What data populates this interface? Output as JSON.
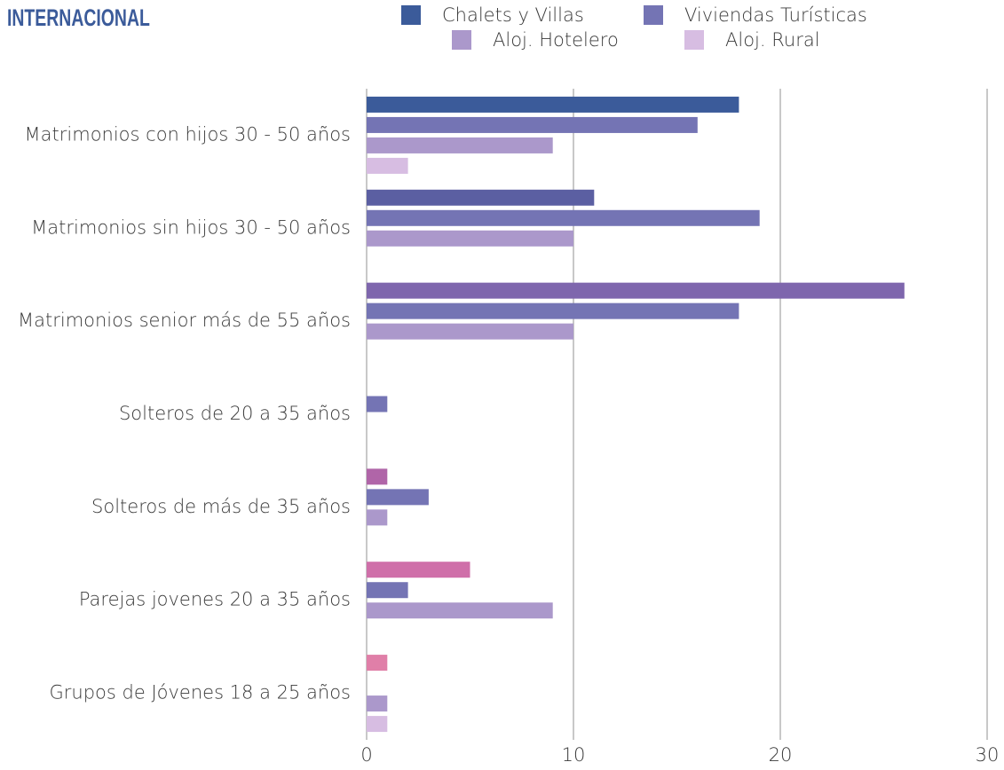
{
  "chart_data": {
    "type": "bar",
    "orientation": "horizontal",
    "title": "INTERNACIONAL",
    "categories": [
      "Matrimonios con hijos 30 - 50 años",
      "Matrimonios sin hijos 30 - 50 años",
      "Matrimonios senior más de 55 años",
      "Solteros de 20 a 35 años",
      "Solteros de más de 35 años",
      "Parejas jovenes 20 a 35 años",
      "Grupos de Jóvenes 18 a 25 años"
    ],
    "series": [
      {
        "name": "Chalets y Villas",
        "color": "#3b5b9a",
        "colors": [
          "#3b5b9a",
          "#5b5fa2",
          "#7e66ad",
          "#9866ab",
          "#b065a8",
          "#cf6fa9",
          "#e07fa8"
        ],
        "values": [
          18,
          11,
          26,
          null,
          1,
          5,
          1
        ]
      },
      {
        "name": "Viviendas Turísticas",
        "color": "#7474b4",
        "values": [
          16,
          19,
          18,
          1,
          3,
          2,
          null
        ]
      },
      {
        "name": "Aloj. Hotelero",
        "color": "#ab98cb",
        "values": [
          9,
          10,
          10,
          null,
          1,
          9,
          1
        ]
      },
      {
        "name": "Aloj. Rural",
        "color": "#d7bde2",
        "values": [
          2,
          null,
          null,
          null,
          null,
          null,
          1
        ]
      }
    ],
    "xlim": [
      0,
      30
    ],
    "xticks": [
      0,
      10,
      20,
      30
    ],
    "grid": true,
    "legend": "top"
  }
}
